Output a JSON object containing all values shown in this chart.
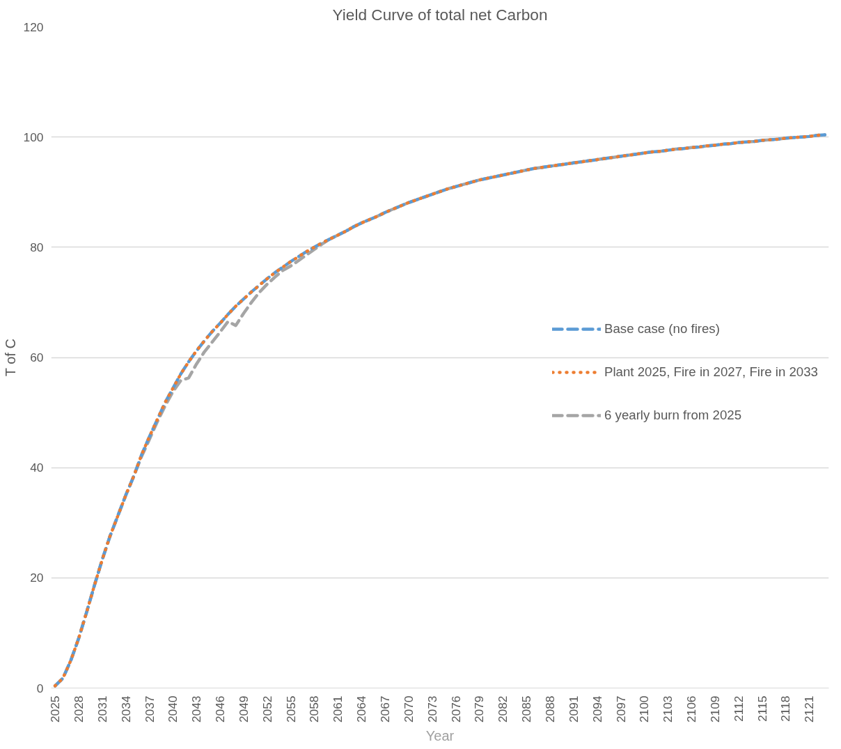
{
  "chart_data": {
    "type": "line",
    "title": "Yield Curve of total net Carbon",
    "xlabel": "Year",
    "ylabel": "T of C",
    "categories": [
      "2025",
      null,
      null,
      "2028",
      null,
      null,
      "2031",
      null,
      null,
      "2034",
      null,
      null,
      "2037",
      null,
      null,
      "2040",
      null,
      null,
      "2043",
      null,
      null,
      "2046",
      null,
      null,
      "2049",
      null,
      null,
      "2052",
      null,
      null,
      "2055",
      null,
      null,
      "2058",
      null,
      null,
      "2061",
      null,
      null,
      "2064",
      null,
      null,
      "2067",
      null,
      null,
      "2070",
      null,
      null,
      "2073",
      null,
      null,
      "2076",
      null,
      null,
      "2079",
      null,
      null,
      "2082",
      null,
      null,
      "2085",
      null,
      null,
      "2088",
      null,
      null,
      "2091",
      null,
      null,
      "2094",
      null,
      null,
      "2097",
      null,
      null,
      "2100",
      null,
      null,
      "2103",
      null,
      null,
      "2106",
      null,
      null,
      "2109",
      null,
      null,
      "2112",
      null,
      null,
      "2115",
      null,
      null,
      "2118",
      null,
      null,
      "2121",
      null,
      null
    ],
    "series": [
      {
        "name": "Base case (no fires)",
        "color": "#5b9bd5",
        "line_style": "dashed",
        "values": [
          0.4,
          1.8,
          5.0,
          9.0,
          13.7,
          18.6,
          23.3,
          27.6,
          31.3,
          35.0,
          38.4,
          42.3,
          45.6,
          48.7,
          51.8,
          54.4,
          57.0,
          59.2,
          61.2,
          63.0,
          64.7,
          66.2,
          67.8,
          69.3,
          70.6,
          71.9,
          73.1,
          74.3,
          75.4,
          76.4,
          77.4,
          78.3,
          79.2,
          80.0,
          80.8,
          81.5,
          82.2,
          82.9,
          83.7,
          84.4,
          85.0,
          85.6,
          86.3,
          86.9,
          87.5,
          88.1,
          88.6,
          89.1,
          89.6,
          90.1,
          90.6,
          91.0,
          91.4,
          91.8,
          92.2,
          92.5,
          92.8,
          93.1,
          93.4,
          93.7,
          94.0,
          94.3,
          94.5,
          94.7,
          94.9,
          95.1,
          95.3,
          95.5,
          95.7,
          95.9,
          96.1,
          96.3,
          96.5,
          96.7,
          96.9,
          97.1,
          97.3,
          97.4,
          97.6,
          97.8,
          97.9,
          98.1,
          98.2,
          98.4,
          98.5,
          98.7,
          98.8,
          99.0,
          99.1,
          99.2,
          99.4,
          99.5,
          99.6,
          99.8,
          99.9,
          100.0,
          100.1,
          100.3,
          100.4
        ]
      },
      {
        "name": "Plant 2025, Fire in 2027, Fire in 2033",
        "color": "#ed7d31",
        "line_style": "dotted",
        "values": [
          0.4,
          1.8,
          5.0,
          9.0,
          13.7,
          18.6,
          23.3,
          27.6,
          31.3,
          35.0,
          38.4,
          42.3,
          45.6,
          48.7,
          51.8,
          54.4,
          57.0,
          59.2,
          61.2,
          63.0,
          64.7,
          66.2,
          67.8,
          69.3,
          70.6,
          71.9,
          73.1,
          74.3,
          75.4,
          76.4,
          77.4,
          78.3,
          79.2,
          80.0,
          80.8,
          81.5,
          82.2,
          82.9,
          83.7,
          84.4,
          85.0,
          85.6,
          86.3,
          86.9,
          87.5,
          88.1,
          88.6,
          89.1,
          89.6,
          90.1,
          90.6,
          91.0,
          91.4,
          91.8,
          92.2,
          92.5,
          92.8,
          93.1,
          93.4,
          93.7,
          94.0,
          94.3,
          94.5,
          94.7,
          94.9,
          95.1,
          95.3,
          95.5,
          95.7,
          95.9,
          96.1,
          96.3,
          96.5,
          96.7,
          96.9,
          97.1,
          97.3,
          97.4,
          97.6,
          97.8,
          97.9,
          98.1,
          98.2,
          98.4,
          98.5,
          98.7,
          98.8,
          99.0,
          99.1,
          99.2,
          99.4,
          99.5,
          99.6,
          99.8,
          99.9,
          100.0,
          100.1,
          100.3,
          100.4
        ]
      },
      {
        "name": "6 yearly burn from 2025",
        "color": "#a5a5a5",
        "line_style": "dashed",
        "values": [
          0.4,
          1.8,
          5.0,
          9.0,
          13.7,
          18.6,
          23.3,
          27.6,
          31.3,
          35.0,
          38.4,
          42.0,
          45.1,
          48.3,
          51.2,
          53.8,
          55.8,
          56.3,
          58.8,
          61.0,
          62.8,
          64.6,
          66.5,
          65.8,
          68.0,
          70.0,
          71.8,
          73.3,
          74.6,
          75.8,
          76.6,
          77.6,
          78.6,
          79.6,
          80.6,
          81.5,
          82.2,
          82.9,
          83.7,
          84.4,
          85.0,
          85.6,
          86.3,
          86.9,
          87.5,
          88.1,
          88.6,
          89.1,
          89.6,
          90.1,
          90.6,
          91.0,
          91.4,
          91.8,
          92.2,
          92.5,
          92.8,
          93.1,
          93.4,
          93.7,
          94.0,
          94.3,
          94.5,
          94.7,
          94.9,
          95.1,
          95.3,
          95.5,
          95.7,
          95.9,
          96.1,
          96.3,
          96.5,
          96.7,
          96.9,
          97.1,
          97.3,
          97.4,
          97.6,
          97.8,
          97.9,
          98.1,
          98.2,
          98.4,
          98.5,
          98.7,
          98.8,
          99.0,
          99.1,
          99.2,
          99.4,
          99.5,
          99.6,
          99.8,
          99.9,
          100.0,
          100.1,
          100.3,
          100.4
        ]
      }
    ],
    "ylim": [
      0,
      120
    ],
    "yticks": [
      0,
      20,
      40,
      60,
      80,
      100,
      120
    ],
    "grid": "y",
    "legend": "right",
    "marker": "none"
  }
}
